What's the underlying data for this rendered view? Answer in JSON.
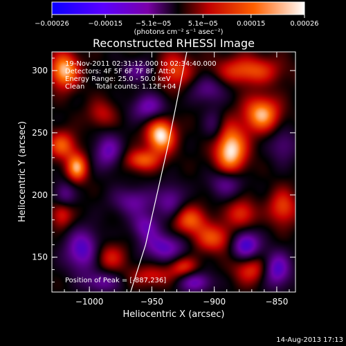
{
  "chart_data": {
    "type": "heatmap",
    "title": "Reconstructed RHESSI Image",
    "xlabel": "Heliocentric X (arcsec)",
    "ylabel": "Heliocentric Y (arcsec)",
    "xlim": [
      -1030,
      -835
    ],
    "ylim": [
      122,
      315
    ],
    "xticks": [
      -1000,
      -950,
      -900,
      -850
    ],
    "xtick_labels": [
      "−1000",
      "−950",
      "−900",
      "−850"
    ],
    "yticks": [
      150,
      200,
      250,
      300
    ],
    "ytick_labels": [
      "150",
      "200",
      "250",
      "300"
    ],
    "colorbar": {
      "range": [
        -0.00026,
        0.00026
      ],
      "ticks": [
        -0.00026,
        -0.00015,
        -5.1e-05,
        5.1e-05,
        0.00015,
        0.00026
      ],
      "tick_labels": [
        "−0.00026",
        "−0.00015",
        "−5.1e−05",
        "5.1e−05",
        "0.00015",
        "0.00026"
      ],
      "unit_label": "(photons cm⁻² s⁻¹ asec⁻²)"
    },
    "annotations": {
      "time_range": "19-Nov-2011 02:31:12.000 to 02:34:40.000",
      "detectors": "Detectors: 4F 5F 6F 7F 8F, Att:0",
      "energy": "Energy Range: 25.0 - 50.0 keV",
      "method": "Clean     Total counts: 1.12E+04",
      "peak": "Position of Peak = [-887,236]"
    },
    "peak_position": [
      -887,
      236
    ],
    "limb_curve": [
      [
        -967,
        122
      ],
      [
        -955,
        160
      ],
      [
        -946,
        200
      ],
      [
        -937,
        240
      ],
      [
        -929,
        280
      ],
      [
        -922,
        315
      ]
    ],
    "blobs": [
      {
        "x": -943,
        "y": 248,
        "sx": 8,
        "sy": 10,
        "v": 1.0
      },
      {
        "x": -887,
        "y": 236,
        "sx": 9,
        "sy": 14,
        "v": 1.0
      },
      {
        "x": -862,
        "y": 265,
        "sx": 10,
        "sy": 10,
        "v": 0.85
      },
      {
        "x": -873,
        "y": 300,
        "sx": 18,
        "sy": 8,
        "v": 0.6
      },
      {
        "x": -932,
        "y": 300,
        "sx": 10,
        "sy": 10,
        "v": 0.55
      },
      {
        "x": -1020,
        "y": 300,
        "sx": 8,
        "sy": 10,
        "v": 0.9
      },
      {
        "x": -1010,
        "y": 222,
        "sx": 6,
        "sy": 8,
        "v": 0.8
      },
      {
        "x": -1022,
        "y": 240,
        "sx": 8,
        "sy": 8,
        "v": 0.6
      },
      {
        "x": -1022,
        "y": 185,
        "sx": 6,
        "sy": 8,
        "v": 0.5
      },
      {
        "x": -958,
        "y": 228,
        "sx": 10,
        "sy": 6,
        "v": 0.6
      },
      {
        "x": -920,
        "y": 180,
        "sx": 10,
        "sy": 8,
        "v": 0.6
      },
      {
        "x": -900,
        "y": 165,
        "sx": 12,
        "sy": 8,
        "v": 0.55
      },
      {
        "x": -878,
        "y": 185,
        "sx": 8,
        "sy": 8,
        "v": 0.5
      },
      {
        "x": -845,
        "y": 190,
        "sx": 8,
        "sy": 10,
        "v": 0.55
      },
      {
        "x": -870,
        "y": 140,
        "sx": 10,
        "sy": 8,
        "v": 0.5
      },
      {
        "x": -985,
        "y": 150,
        "sx": 10,
        "sy": 8,
        "v": 0.45
      },
      {
        "x": -950,
        "y": 135,
        "sx": 12,
        "sy": 6,
        "v": 0.4
      },
      {
        "x": -925,
        "y": 142,
        "sx": 8,
        "sy": 6,
        "v": 0.5
      },
      {
        "x": -990,
        "y": 265,
        "sx": 8,
        "sy": 8,
        "v": 0.35
      },
      {
        "x": -952,
        "y": 270,
        "sx": 10,
        "sy": 8,
        "v": -0.55
      },
      {
        "x": -985,
        "y": 235,
        "sx": 8,
        "sy": 10,
        "v": -0.55
      },
      {
        "x": -1005,
        "y": 155,
        "sx": 10,
        "sy": 12,
        "v": -0.7
      },
      {
        "x": -965,
        "y": 195,
        "sx": 12,
        "sy": 8,
        "v": -0.45
      },
      {
        "x": -935,
        "y": 195,
        "sx": 8,
        "sy": 10,
        "v": -0.45
      },
      {
        "x": -890,
        "y": 210,
        "sx": 10,
        "sy": 8,
        "v": -0.5
      },
      {
        "x": -875,
        "y": 160,
        "sx": 8,
        "sy": 8,
        "v": -0.8
      },
      {
        "x": -850,
        "y": 140,
        "sx": 8,
        "sy": 10,
        "v": -0.7
      },
      {
        "x": -940,
        "y": 158,
        "sx": 12,
        "sy": 8,
        "v": -0.6
      },
      {
        "x": -955,
        "y": 175,
        "sx": 8,
        "sy": 8,
        "v": -0.5
      },
      {
        "x": -905,
        "y": 285,
        "sx": 10,
        "sy": 8,
        "v": -0.4
      },
      {
        "x": -960,
        "y": 300,
        "sx": 10,
        "sy": 6,
        "v": -0.4
      },
      {
        "x": -845,
        "y": 240,
        "sx": 8,
        "sy": 10,
        "v": -0.35
      },
      {
        "x": -1020,
        "y": 200,
        "sx": 6,
        "sy": 8,
        "v": -0.45
      },
      {
        "x": -990,
        "y": 130,
        "sx": 10,
        "sy": 6,
        "v": -0.45
      },
      {
        "x": -915,
        "y": 130,
        "sx": 10,
        "sy": 6,
        "v": -0.55
      },
      {
        "x": -900,
        "y": 255,
        "sx": 6,
        "sy": 10,
        "v": -0.3
      }
    ]
  },
  "footer_date": "14-Aug-2013 17:13"
}
